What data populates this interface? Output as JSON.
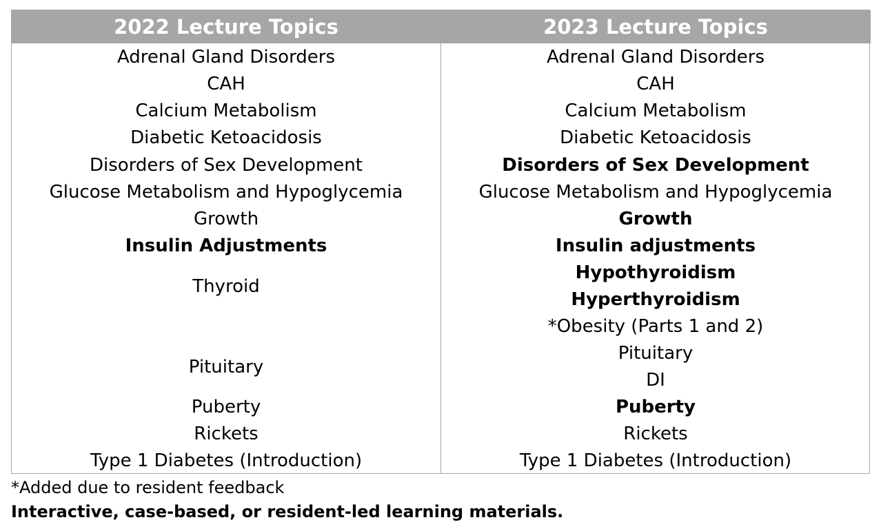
{
  "table": {
    "headers": [
      "2022 Lecture Topics",
      "2023 Lecture Topics"
    ],
    "col_2022": [
      "Adrenal Gland Disorders",
      "CAH",
      "Calcium Metabolism",
      "Diabetic Ketoacidosis",
      "Disorders of Sex Development",
      "Glucose Metabolism and Hypoglycemia",
      "Growth",
      "Insulin Adjustments",
      "Thyroid",
      "Pituitary",
      "Puberty",
      "Rickets",
      "Type 1 Diabetes (Introduction)"
    ],
    "col_2023": [
      "Adrenal Gland Disorders",
      "CAH",
      "Calcium Metabolism",
      "Diabetic Ketoacidosis",
      "Disorders of Sex Development",
      "Glucose Metabolism and Hypoglycemia",
      "Growth",
      "Insulin adjustments",
      "Hypothyroidism",
      "Hyperthyroidism",
      "*Obesity (Parts 1 and 2)",
      "Pituitary",
      "DI",
      "Puberty",
      "Rickets",
      "Type 1 Diabetes (Introduction)"
    ]
  },
  "footnotes": {
    "added": "*Added due to resident feedback",
    "interactive": "Interactive, case-based, or resident-led learning materials."
  },
  "colors": {
    "header_bg": "#a6a6a6",
    "header_text": "#ffffff",
    "border": "#a6a6a6"
  }
}
